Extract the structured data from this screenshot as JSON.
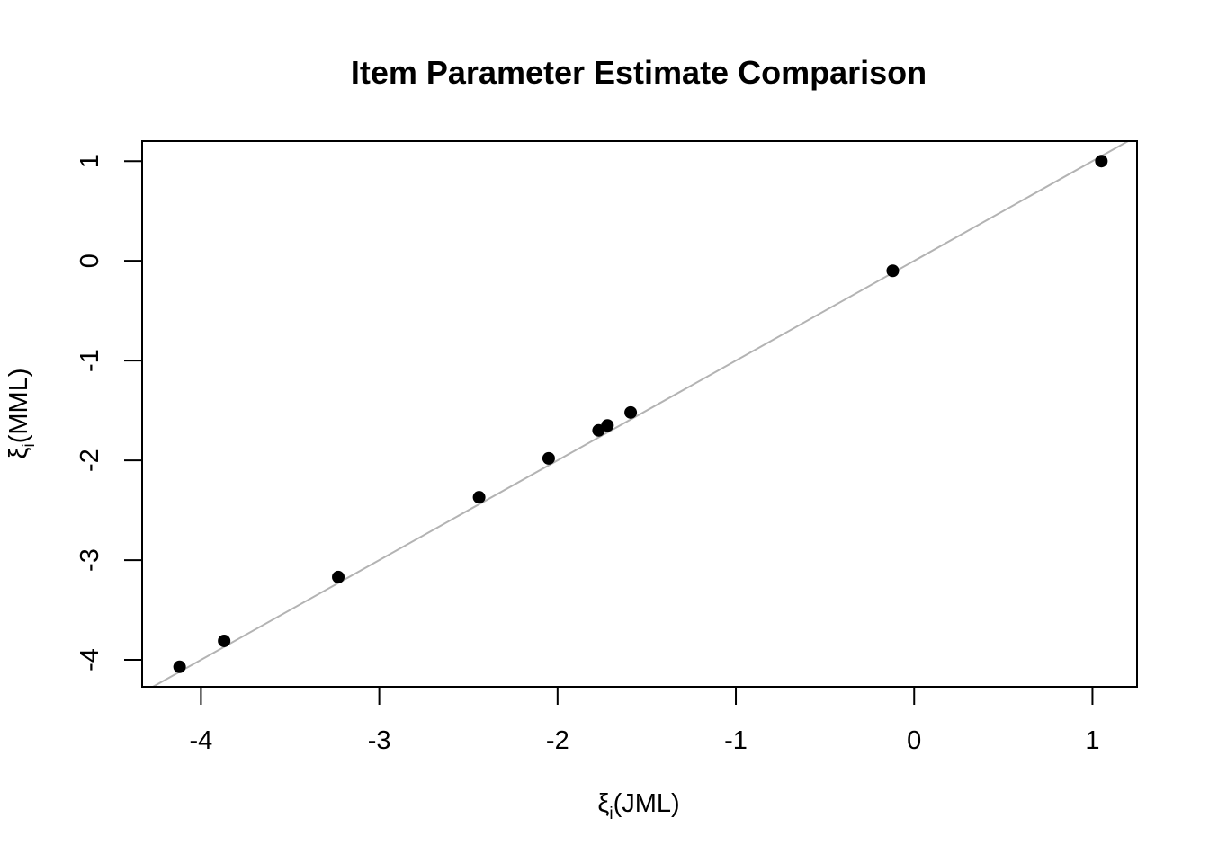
{
  "chart_data": {
    "type": "scatter",
    "title": "Item Parameter Estimate Comparison",
    "xlabel": {
      "symbol": "ξ",
      "subscript": "i",
      "rest": "(JML)"
    },
    "ylabel": {
      "symbol": "ξ",
      "subscript": "i",
      "rest": "(MML)"
    },
    "xlim": [
      -4.33,
      1.25
    ],
    "ylim": [
      -4.27,
      1.2
    ],
    "xticks": [
      -4,
      -3,
      -2,
      -1,
      0,
      1
    ],
    "xtick_labels": [
      "-4",
      "-3",
      "-2",
      "-1",
      "0",
      "1"
    ],
    "yticks": [
      -4,
      -3,
      -2,
      -1,
      0,
      1
    ],
    "ytick_labels": [
      "-4",
      "-3",
      "-2",
      "-1",
      "0",
      "1"
    ],
    "grid": false,
    "reference_line": {
      "intercept": 0,
      "slope": 1,
      "color": "#b3b3b3"
    },
    "points": [
      {
        "x": -4.12,
        "y": -4.07
      },
      {
        "x": -3.87,
        "y": -3.81
      },
      {
        "x": -3.23,
        "y": -3.17
      },
      {
        "x": -2.44,
        "y": -2.37
      },
      {
        "x": -2.05,
        "y": -1.98
      },
      {
        "x": -1.77,
        "y": -1.7
      },
      {
        "x": -1.72,
        "y": -1.65
      },
      {
        "x": -1.59,
        "y": -1.52
      },
      {
        "x": -0.12,
        "y": -0.1
      },
      {
        "x": 1.05,
        "y": 1.0
      }
    ],
    "point_color": "#000000"
  }
}
